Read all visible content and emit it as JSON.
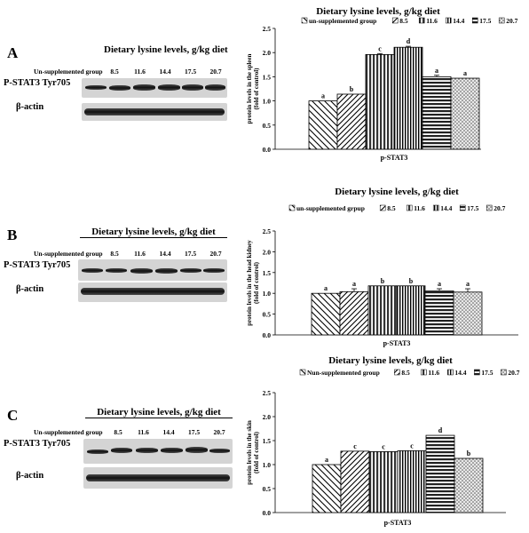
{
  "colors": {
    "background": "#ffffff",
    "bar_stroke": "#000000",
    "blot_band": "#1a1a1a",
    "blot_strip": "#d4d4d4"
  },
  "panels": [
    {
      "letter": "A",
      "blot": {
        "title": "Dietary lysine levels, g/kg diet",
        "header": "Un-supplemented group",
        "lanes": [
          "8.5",
          "11.6",
          "14.4",
          "17.5",
          "20.7"
        ],
        "rows": [
          "P-STAT3 Tyr705",
          "β-actin"
        ]
      }
    },
    {
      "letter": "B",
      "blot": {
        "title": "Dietary lysine levels, g/kg diet",
        "header": "Un-supplemented group",
        "lanes": [
          "8.5",
          "11.6",
          "14.4",
          "17.5",
          "20.7"
        ],
        "rows": [
          "P-STAT3 Tyr705",
          "β-actin"
        ]
      }
    },
    {
      "letter": "C",
      "blot": {
        "title": "Dietary lysine levels, g/kg diet",
        "header": "Un-supplemented group",
        "lanes": [
          "8.5",
          "11.6",
          "14.4",
          "17.5",
          "20.7"
        ],
        "rows": [
          "P-STAT3 Tyr705",
          "β-actin"
        ]
      }
    }
  ],
  "chart_data": [
    {
      "type": "bar",
      "title": "Dietary lysine levels, g/kg diet",
      "ylabel": "protein levels in the spleen (fold of control)",
      "xlabel": "p-STAT3",
      "legend_position": "top",
      "ylim": [
        0,
        2.5
      ],
      "ytick_labels": [
        "0.0",
        "0.5",
        "1.0",
        "1.5",
        "2.0",
        "2.5"
      ],
      "legend": [
        "un-supplemented group",
        "8.5",
        "11.6",
        "14.4",
        "17.5",
        "20.7"
      ],
      "values": [
        1.0,
        1.14,
        1.96,
        2.11,
        1.5,
        1.47
      ],
      "errors": [
        0.0,
        0.0,
        0.02,
        0.02,
        0.03,
        0.0
      ],
      "letters": [
        "a",
        "b",
        "c",
        "d",
        "a",
        "a"
      ]
    },
    {
      "type": "bar",
      "title": "Dietary lysine levels, g/kg diet",
      "ylabel": "protein levels in the head kidney (fold of control)",
      "xlabel": "p-STAT3",
      "legend_position": "top",
      "ylim": [
        0,
        2.5
      ],
      "ytick_labels": [
        "0.0",
        "0.5",
        "1.0",
        "1.5",
        "2.0",
        "2.5"
      ],
      "legend": [
        "un-supplemented grpup",
        "8.5",
        "11.6",
        "14.4",
        "17.5",
        "20.7"
      ],
      "values": [
        1.0,
        1.04,
        1.18,
        1.18,
        1.06,
        1.03
      ],
      "errors": [
        0.0,
        0.07,
        0.0,
        0.0,
        0.05,
        0.08
      ],
      "letters": [
        "a",
        "a",
        "b",
        "b",
        "a",
        "a"
      ]
    },
    {
      "type": "bar",
      "title": "Dietary lysine levels, g/kg diet",
      "ylabel": "protein levels in the skin (fold of control)",
      "xlabel": "p-STAT3",
      "legend_position": "top",
      "ylim": [
        0,
        2.5
      ],
      "ytick_labels": [
        "0.0",
        "0.5",
        "1.0",
        "1.5",
        "2.0",
        "2.5"
      ],
      "legend": [
        "Nun-supplemented group",
        "8.5",
        "11.6",
        "14.4",
        "17.5",
        "20.7"
      ],
      "values": [
        1.0,
        1.28,
        1.27,
        1.29,
        1.61,
        1.13
      ],
      "errors": [
        0.0,
        0.0,
        0.0,
        0.0,
        0.0,
        0.0
      ],
      "letters": [
        "a",
        "c",
        "c",
        "c",
        "d",
        "b"
      ]
    }
  ]
}
